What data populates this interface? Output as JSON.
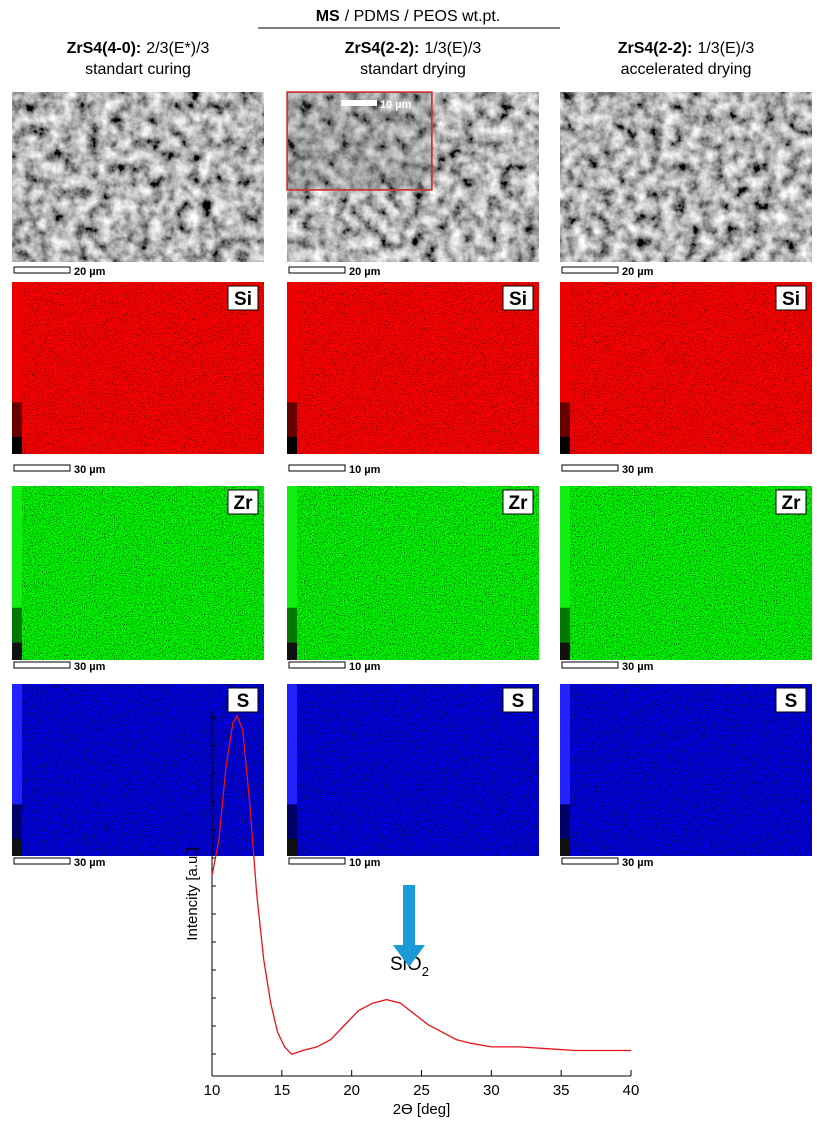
{
  "header": {
    "bold": "MS",
    "rest": "/ PDMS / PEOS wt.pt."
  },
  "columns": [
    {
      "name": "ZrS4(4-0):",
      "composition": "2/3(E*)/3",
      "mode": "standart curing",
      "sem_scale": "20 µm",
      "map_scales": [
        "30 µm",
        "30 µm",
        "30 µm"
      ]
    },
    {
      "name": "ZrS4(2-2):",
      "composition": "1/3(E)/3",
      "mode": "standart drying",
      "sem_scale": "20 µm",
      "map_scales": [
        "10 µm",
        "10 µm",
        "10 µm"
      ]
    },
    {
      "name": "ZrS4(2-2):",
      "composition": "1/3(E)/3",
      "mode": "accelerated drying",
      "sem_scale": "20 µm",
      "map_scales": [
        "30 µm",
        "30 µm",
        "30 µm"
      ]
    }
  ],
  "inset_scale": "10 µm",
  "elements": [
    "Si",
    "Zr",
    "S"
  ],
  "chart_data": {
    "type": "line",
    "xlabel": "2ϴ [deg]",
    "ylabel": "Intencity [a.u.]",
    "annotation": {
      "text": "SiO",
      "subscript": "2"
    },
    "x": [
      10,
      10.5,
      11,
      11.5,
      11.8,
      12.2,
      12.7,
      13.2,
      13.7,
      14.2,
      14.7,
      15.2,
      15.7,
      16.5,
      17.5,
      18.5,
      19.5,
      20.5,
      21.5,
      22.5,
      23.5,
      24.5,
      25.5,
      26.5,
      27.5,
      28.5,
      30,
      32,
      34,
      36,
      38,
      40
    ],
    "values": [
      55,
      65,
      85,
      97,
      99,
      95,
      75,
      50,
      32,
      20,
      12,
      8,
      6,
      7,
      8,
      10,
      14,
      18,
      20,
      21,
      20,
      17,
      14,
      12,
      10,
      9,
      8,
      8,
      7.5,
      7,
      7,
      7
    ],
    "color": "#e8141a",
    "xlim": [
      10,
      40
    ],
    "ylim": [
      0,
      100
    ],
    "xticks": [
      10,
      15,
      20,
      25,
      30,
      35,
      40
    ]
  }
}
